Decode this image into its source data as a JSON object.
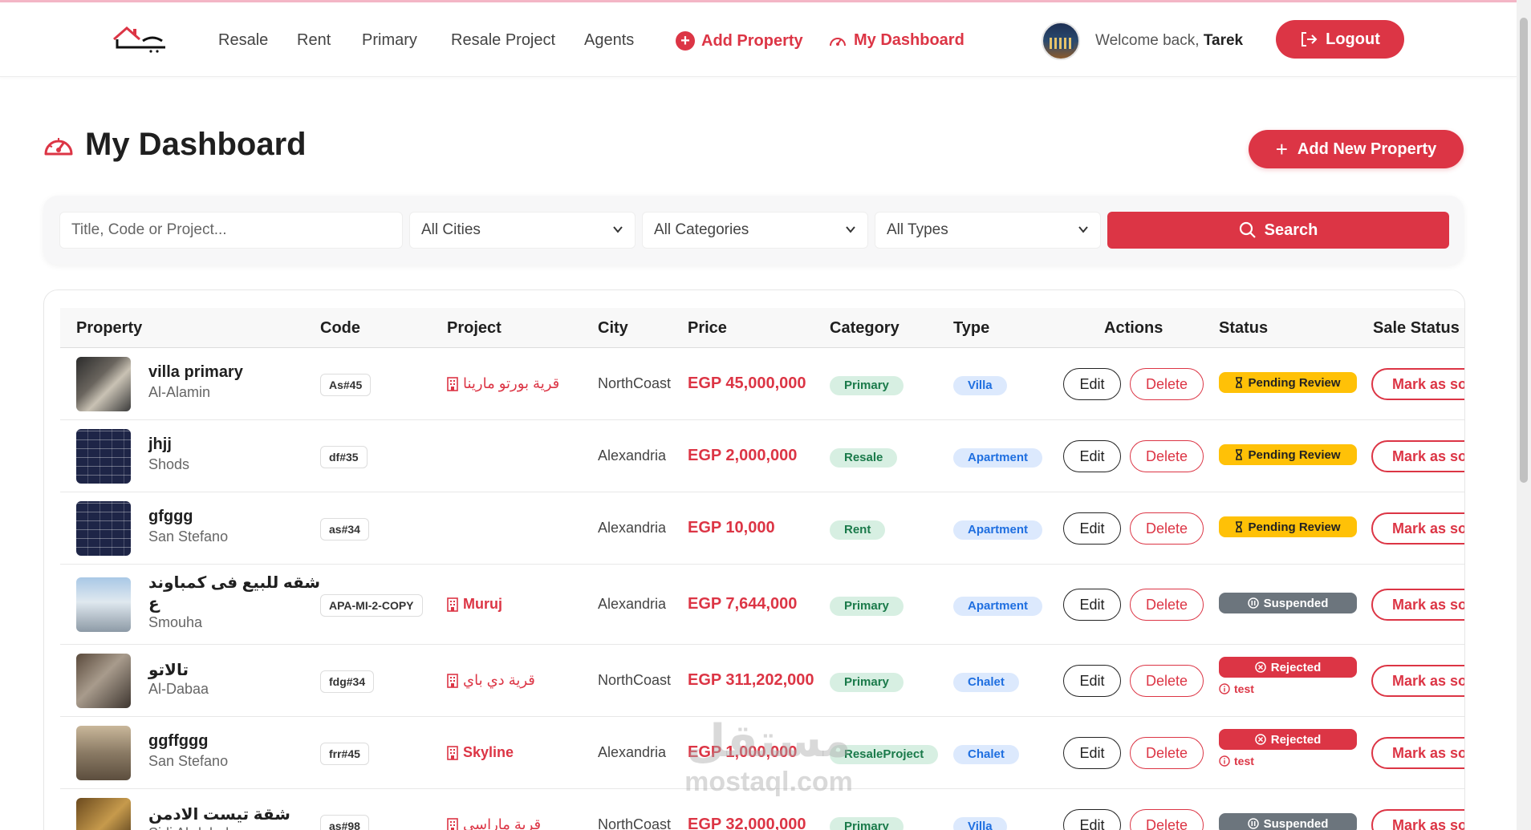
{
  "nav": {
    "links": [
      "Resale",
      "Rent",
      "Primary",
      "Resale Project",
      "Agents"
    ],
    "add_property": "Add Property",
    "my_dashboard": "My Dashboard",
    "welcome_prefix": "Welcome back,",
    "user_name": "Tarek",
    "logout": "Logout"
  },
  "page": {
    "title": "My Dashboard",
    "add_new_property": "Add New Property"
  },
  "filters": {
    "search_placeholder": "Title, Code or Project...",
    "city": "All Cities",
    "category": "All Categories",
    "type": "All Types",
    "search_button": "Search"
  },
  "table": {
    "headers": [
      "Property",
      "Code",
      "Project",
      "City",
      "Price",
      "Category",
      "Type",
      "Actions",
      "Status",
      "Sale Status"
    ],
    "edit_label": "Edit",
    "delete_label": "Delete",
    "mark_label": "Mark as sold",
    "rows": [
      {
        "title": "villa primary",
        "title2": "",
        "area": "Al-Alamin",
        "code": "As#45",
        "project": "قرية بورتو مارينا",
        "city": "NorthCoast",
        "price": "EGP 45,000,000",
        "category": "Primary",
        "type": "Villa",
        "status": "Pending Review",
        "reason": ""
      },
      {
        "title": "jhjj",
        "title2": "",
        "area": "Shods",
        "code": "df#35",
        "project": "",
        "city": "Alexandria",
        "price": "EGP 2,000,000",
        "category": "Resale",
        "type": "Apartment",
        "status": "Pending Review",
        "reason": ""
      },
      {
        "title": "gfggg",
        "title2": "",
        "area": "San Stefano",
        "code": "as#34",
        "project": "",
        "city": "Alexandria",
        "price": "EGP 10,000",
        "category": "Rent",
        "type": "Apartment",
        "status": "Pending Review",
        "reason": ""
      },
      {
        "title": "شقه للبيع فى كمباوند",
        "title2": "ع",
        "area": "Smouha",
        "code": "APA-MI-2-COPY",
        "project": "Muruj",
        "city": "Alexandria",
        "price": "EGP 7,644,000",
        "category": "Primary",
        "type": "Apartment",
        "status": "Suspended",
        "reason": ""
      },
      {
        "title": "تالاتو",
        "title2": "",
        "area": "Al-Dabaa",
        "code": "fdg#34",
        "project": "قرية دي باي",
        "city": "NorthCoast",
        "price": "EGP 311,202,000",
        "category": "Primary",
        "type": "Chalet",
        "status": "Rejected",
        "reason": "test"
      },
      {
        "title": "ggffggg",
        "title2": "",
        "area": "San Stefano",
        "code": "frr#45",
        "project": "Skyline",
        "city": "Alexandria",
        "price": "EGP 1,000,000",
        "category": "ResaleProject",
        "type": "Chalet",
        "status": "Rejected",
        "reason": "test"
      },
      {
        "title": "شقة تيست الادمن",
        "title2": "",
        "area": "Sidi Abdelrahman",
        "code": "as#98",
        "project": "قرية ماراسي",
        "city": "NorthCoast",
        "price": "EGP 32,000,000",
        "category": "Primary",
        "type": "Villa",
        "status": "Suspended",
        "reason": ""
      }
    ]
  },
  "watermark": {
    "arabic": "مستقل",
    "latin": "mostaql.com"
  },
  "colors": {
    "accent": "#dc3545",
    "pending": "#ffc107",
    "suspended": "#6c757d",
    "category_bg": "#d7efe2",
    "type_bg": "#dce9fd"
  }
}
